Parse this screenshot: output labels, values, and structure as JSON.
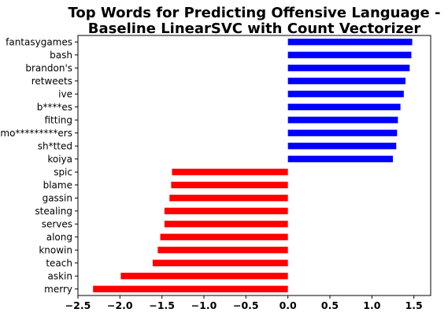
{
  "chart_data": {
    "type": "bar",
    "orientation": "horizontal",
    "title_lines": [
      "Top Words for Predicting Offensive Language -",
      "Baseline LinearSVC with Count Vectorizer"
    ],
    "xlabel": "",
    "ylabel": "",
    "xlim": [
      -2.5,
      1.7
    ],
    "xticks": [
      -2.5,
      -2.0,
      -1.5,
      -1.0,
      -0.5,
      0.0,
      0.5,
      1.0,
      1.5
    ],
    "xtick_labels": [
      "−2.5",
      "−2.0",
      "−1.5",
      "−1.0",
      "−0.5",
      "0.0",
      "0.5",
      "1.0",
      "1.5"
    ],
    "grid": false,
    "legend": false,
    "categories": [
      "fantasygames",
      "bash",
      "brandon's",
      "retweets",
      "ive",
      "b****es",
      "fitting",
      "mo*********ers",
      "sh*tted",
      "koiya",
      "spic",
      "blame",
      "gassin",
      "stealing",
      "serves",
      "along",
      "knowin",
      "teach",
      "askin",
      "merry"
    ],
    "values": [
      1.48,
      1.47,
      1.45,
      1.4,
      1.38,
      1.34,
      1.31,
      1.3,
      1.29,
      1.25,
      -1.38,
      -1.39,
      -1.41,
      -1.47,
      -1.47,
      -1.52,
      -1.55,
      -1.61,
      -1.99,
      -2.32
    ],
    "colors": {
      "positive": "#0000ff",
      "negative": "#ff0000"
    }
  }
}
